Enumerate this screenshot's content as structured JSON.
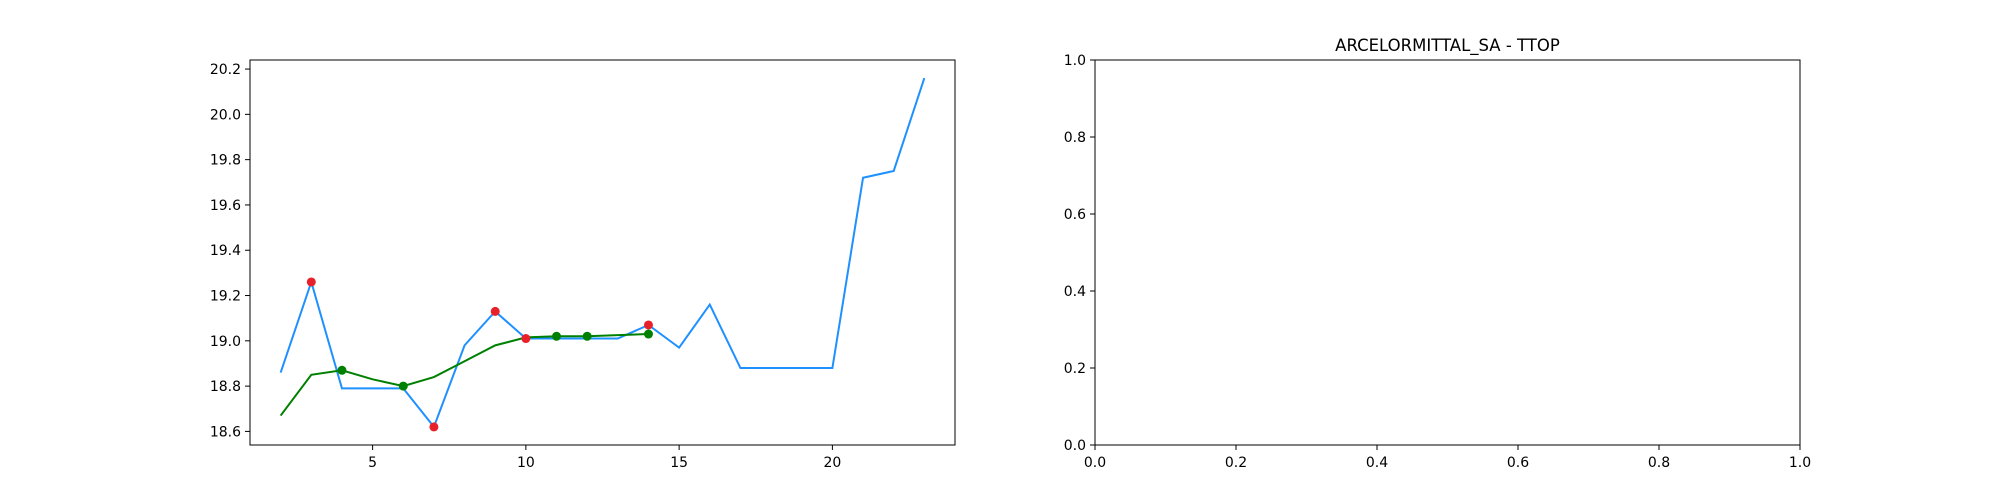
{
  "chart_data": [
    {
      "type": "line",
      "title": "",
      "xlabel": "",
      "ylabel": "",
      "xlim": [
        1,
        24
      ],
      "ylim": [
        18.54,
        20.24
      ],
      "xticks": [
        5,
        10,
        15,
        20
      ],
      "yticks": [
        18.6,
        18.8,
        19.0,
        19.2,
        19.4,
        19.6,
        19.8,
        20.0,
        20.2
      ],
      "xtick_labels": [
        "5",
        "10",
        "15",
        "20"
      ],
      "ytick_labels": [
        "18.6",
        "18.8",
        "19.0",
        "19.2",
        "19.4",
        "19.6",
        "19.8",
        "20.0",
        "20.2"
      ],
      "series": [
        {
          "kind": "line",
          "color": "#1e90ff",
          "x": [
            2,
            3,
            4,
            5,
            6,
            7,
            8,
            9,
            10,
            11,
            12,
            13,
            14,
            15,
            16,
            17,
            18,
            19,
            20,
            21,
            22,
            23
          ],
          "y": [
            18.86,
            19.26,
            18.79,
            18.79,
            18.79,
            18.62,
            18.98,
            19.13,
            19.01,
            19.01,
            19.01,
            19.01,
            19.07,
            18.97,
            19.16,
            18.88,
            18.88,
            18.88,
            18.88,
            19.72,
            19.75,
            20.16
          ]
        },
        {
          "kind": "line",
          "color": "#008000",
          "x": [
            2,
            3,
            4,
            5,
            6,
            7,
            8,
            9,
            10,
            11,
            12,
            13,
            14
          ],
          "y": [
            18.67,
            18.85,
            18.87,
            18.83,
            18.8,
            18.84,
            18.91,
            18.98,
            19.015,
            19.02,
            19.02,
            19.025,
            19.03
          ]
        },
        {
          "kind": "scatter",
          "color": "#e8202a",
          "x": [
            3,
            7,
            9,
            10,
            14
          ],
          "y": [
            19.26,
            18.62,
            19.13,
            19.01,
            19.07
          ]
        },
        {
          "kind": "scatter",
          "color": "#008000",
          "x": [
            4,
            6,
            11,
            12,
            14
          ],
          "y": [
            18.87,
            18.8,
            19.02,
            19.02,
            19.03
          ]
        }
      ]
    },
    {
      "type": "line",
      "title": "ARCELORMITTAL_SA - TTOP",
      "xlabel": "",
      "ylabel": "",
      "xlim": [
        0,
        1
      ],
      "ylim": [
        0,
        1
      ],
      "xticks": [
        0,
        0.2,
        0.4,
        0.6,
        0.8,
        1.0
      ],
      "yticks": [
        0,
        0.2,
        0.4,
        0.6,
        0.8,
        1.0
      ],
      "xtick_labels": [
        "0.0",
        "0.2",
        "0.4",
        "0.6",
        "0.8",
        "1.0"
      ],
      "ytick_labels": [
        "0.0",
        "0.2",
        "0.4",
        "0.6",
        "0.8",
        "1.0"
      ],
      "series": []
    }
  ]
}
